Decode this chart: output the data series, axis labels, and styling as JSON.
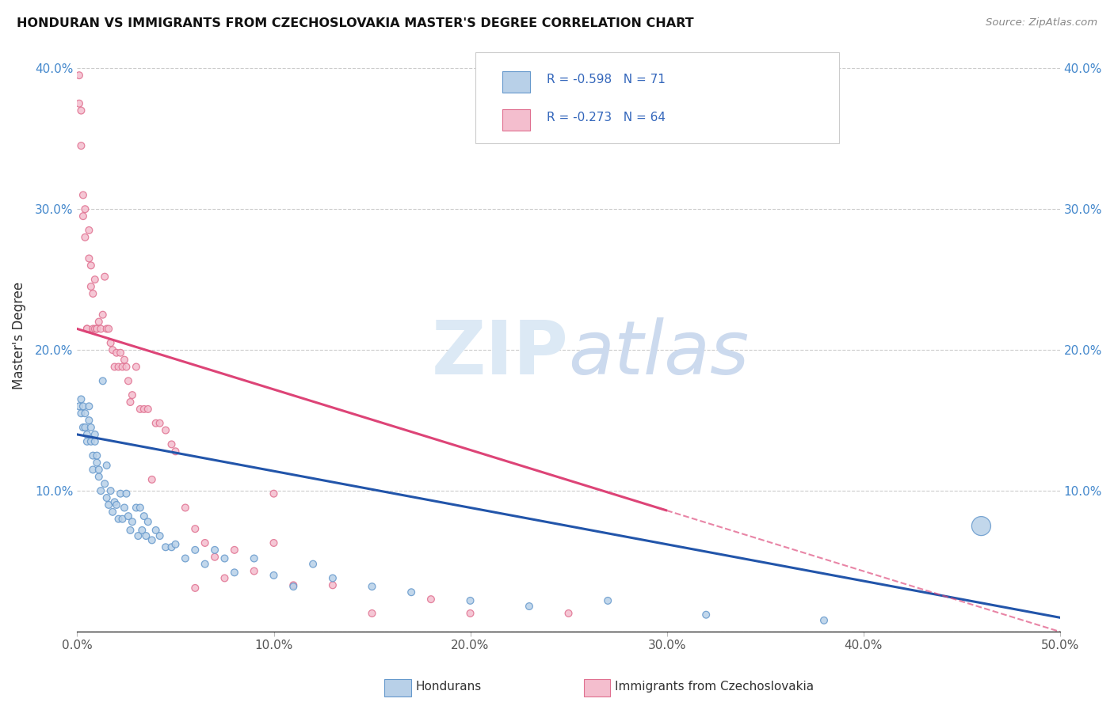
{
  "title": "HONDURAN VS IMMIGRANTS FROM CZECHOSLOVAKIA MASTER'S DEGREE CORRELATION CHART",
  "source": "Source: ZipAtlas.com",
  "ylabel": "Master's Degree",
  "xlim": [
    0.0,
    0.5
  ],
  "ylim": [
    0.0,
    0.42
  ],
  "xticks": [
    0.0,
    0.1,
    0.2,
    0.3,
    0.4,
    0.5
  ],
  "yticks": [
    0.0,
    0.1,
    0.2,
    0.3,
    0.4
  ],
  "ytick_labels": [
    "",
    "10.0%",
    "20.0%",
    "30.0%",
    "40.0%"
  ],
  "xtick_labels": [
    "0.0%",
    "10.0%",
    "20.0%",
    "30.0%",
    "40.0%",
    "50.0%"
  ],
  "blue_face_color": "#b8d0e8",
  "pink_face_color": "#f4bece",
  "blue_edge_color": "#6699cc",
  "pink_edge_color": "#e07090",
  "blue_line_color": "#2255aa",
  "pink_line_color": "#dd4477",
  "legend_blue_label": "Hondurans",
  "legend_pink_label": "Immigrants from Czechoslovakia",
  "R_blue": -0.598,
  "N_blue": 71,
  "R_pink": -0.273,
  "N_pink": 64,
  "blue_intercept": 0.14,
  "blue_slope": -0.26,
  "pink_intercept": 0.215,
  "pink_slope": -0.43,
  "blue_x": [
    0.001,
    0.002,
    0.002,
    0.003,
    0.003,
    0.004,
    0.004,
    0.005,
    0.005,
    0.006,
    0.006,
    0.007,
    0.007,
    0.008,
    0.008,
    0.009,
    0.009,
    0.01,
    0.01,
    0.011,
    0.011,
    0.012,
    0.013,
    0.014,
    0.015,
    0.015,
    0.016,
    0.017,
    0.018,
    0.019,
    0.02,
    0.021,
    0.022,
    0.023,
    0.024,
    0.025,
    0.026,
    0.027,
    0.028,
    0.03,
    0.031,
    0.032,
    0.033,
    0.034,
    0.035,
    0.036,
    0.038,
    0.04,
    0.042,
    0.045,
    0.048,
    0.05,
    0.055,
    0.06,
    0.065,
    0.07,
    0.075,
    0.08,
    0.09,
    0.1,
    0.11,
    0.12,
    0.13,
    0.15,
    0.17,
    0.2,
    0.23,
    0.27,
    0.32,
    0.38,
    0.46
  ],
  "blue_y": [
    0.16,
    0.155,
    0.165,
    0.145,
    0.16,
    0.155,
    0.145,
    0.14,
    0.135,
    0.15,
    0.16,
    0.135,
    0.145,
    0.125,
    0.115,
    0.135,
    0.14,
    0.12,
    0.125,
    0.11,
    0.115,
    0.1,
    0.178,
    0.105,
    0.095,
    0.118,
    0.09,
    0.1,
    0.085,
    0.092,
    0.09,
    0.08,
    0.098,
    0.08,
    0.088,
    0.098,
    0.082,
    0.072,
    0.078,
    0.088,
    0.068,
    0.088,
    0.072,
    0.082,
    0.068,
    0.078,
    0.065,
    0.072,
    0.068,
    0.06,
    0.06,
    0.062,
    0.052,
    0.058,
    0.048,
    0.058,
    0.052,
    0.042,
    0.052,
    0.04,
    0.032,
    0.048,
    0.038,
    0.032,
    0.028,
    0.022,
    0.018,
    0.022,
    0.012,
    0.008,
    0.075
  ],
  "blue_size": [
    40,
    40,
    40,
    40,
    40,
    40,
    40,
    40,
    40,
    40,
    40,
    40,
    40,
    40,
    40,
    40,
    40,
    40,
    40,
    40,
    40,
    40,
    40,
    40,
    40,
    40,
    40,
    40,
    40,
    40,
    40,
    40,
    40,
    40,
    40,
    40,
    40,
    40,
    40,
    40,
    40,
    40,
    40,
    40,
    40,
    40,
    40,
    40,
    40,
    40,
    40,
    40,
    40,
    40,
    40,
    40,
    40,
    40,
    40,
    40,
    40,
    40,
    40,
    40,
    40,
    40,
    40,
    40,
    40,
    40,
    300
  ],
  "pink_x": [
    0.001,
    0.001,
    0.002,
    0.002,
    0.003,
    0.003,
    0.004,
    0.004,
    0.005,
    0.005,
    0.006,
    0.006,
    0.007,
    0.007,
    0.008,
    0.008,
    0.009,
    0.009,
    0.01,
    0.01,
    0.011,
    0.012,
    0.013,
    0.014,
    0.015,
    0.016,
    0.017,
    0.018,
    0.019,
    0.02,
    0.021,
    0.022,
    0.023,
    0.024,
    0.025,
    0.026,
    0.027,
    0.028,
    0.03,
    0.032,
    0.034,
    0.036,
    0.038,
    0.04,
    0.042,
    0.045,
    0.048,
    0.05,
    0.055,
    0.06,
    0.065,
    0.07,
    0.075,
    0.08,
    0.09,
    0.1,
    0.11,
    0.13,
    0.15,
    0.18,
    0.2,
    0.25,
    0.1,
    0.06
  ],
  "pink_y": [
    0.395,
    0.375,
    0.345,
    0.37,
    0.31,
    0.295,
    0.3,
    0.28,
    0.215,
    0.215,
    0.285,
    0.265,
    0.26,
    0.245,
    0.24,
    0.215,
    0.25,
    0.215,
    0.215,
    0.215,
    0.22,
    0.215,
    0.225,
    0.252,
    0.215,
    0.215,
    0.205,
    0.2,
    0.188,
    0.198,
    0.188,
    0.198,
    0.188,
    0.193,
    0.188,
    0.178,
    0.163,
    0.168,
    0.188,
    0.158,
    0.158,
    0.158,
    0.108,
    0.148,
    0.148,
    0.143,
    0.133,
    0.128,
    0.088,
    0.073,
    0.063,
    0.053,
    0.038,
    0.058,
    0.043,
    0.063,
    0.033,
    0.033,
    0.013,
    0.023,
    0.013,
    0.013,
    0.098,
    0.031
  ],
  "pink_size": [
    40,
    40,
    40,
    40,
    40,
    40,
    40,
    40,
    40,
    40,
    40,
    40,
    40,
    40,
    40,
    40,
    40,
    40,
    40,
    40,
    40,
    40,
    40,
    40,
    40,
    40,
    40,
    40,
    40,
    40,
    40,
    40,
    40,
    40,
    40,
    40,
    40,
    40,
    40,
    40,
    40,
    40,
    40,
    40,
    40,
    40,
    40,
    40,
    40,
    40,
    40,
    40,
    40,
    40,
    40,
    40,
    40,
    40,
    40,
    40,
    40,
    40,
    40,
    40
  ]
}
